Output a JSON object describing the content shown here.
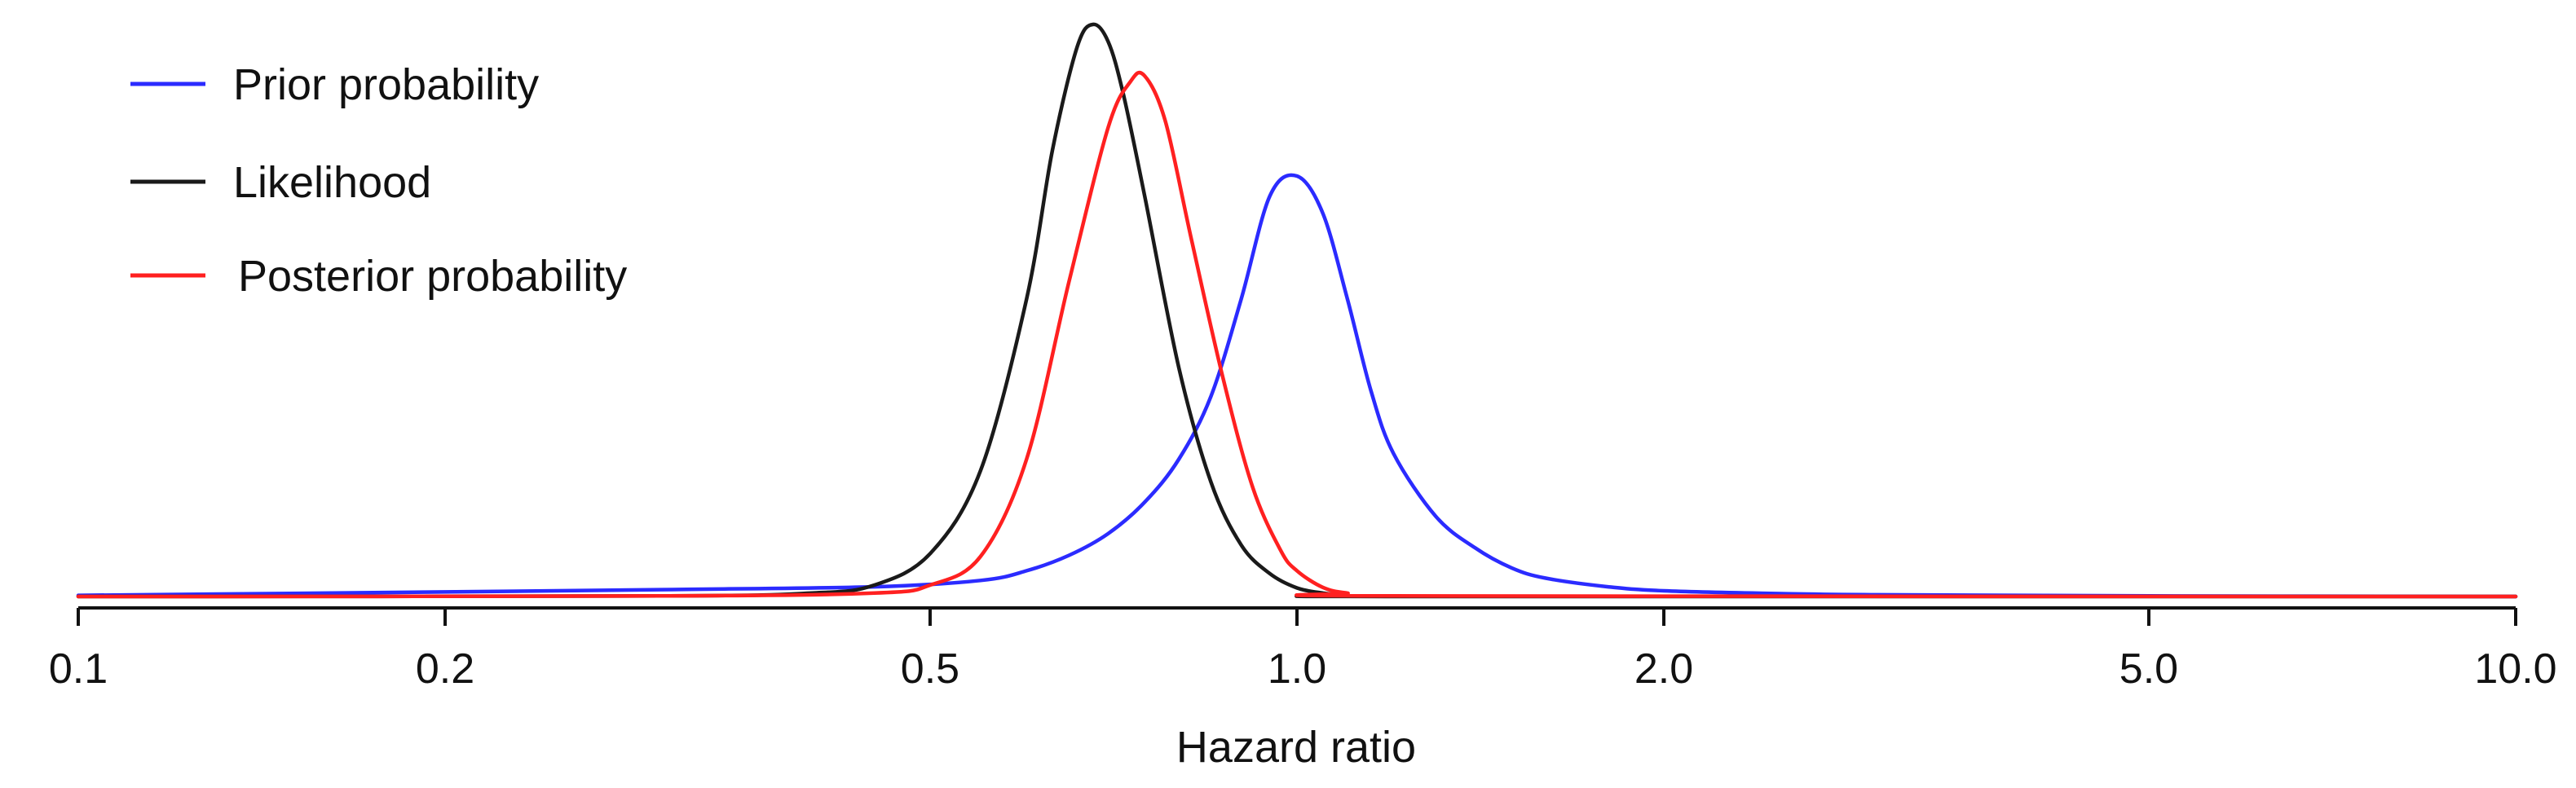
{
  "chart_data": {
    "type": "line",
    "xscale": "log",
    "xlim": [
      0.1,
      10.0
    ],
    "ylim": [
      0,
      1
    ],
    "xlabel": "Hazard ratio",
    "ylabel": "",
    "grid": false,
    "legend_position": "top-left",
    "xticks": [
      {
        "value": 0.1,
        "label": "0.1"
      },
      {
        "value": 0.2,
        "label": "0.2"
      },
      {
        "value": 0.5,
        "label": "0.5"
      },
      {
        "value": 1.0,
        "label": "1.0"
      },
      {
        "value": 2.0,
        "label": "2.0"
      },
      {
        "value": 5.0,
        "label": "5.0"
      },
      {
        "value": 10.0,
        "label": "10.0"
      }
    ],
    "series": [
      {
        "name": "Prior probability",
        "color": "#2b2bff",
        "x": [
          0.1,
          0.2,
          0.3,
          0.45,
          0.55,
          0.6,
          0.65,
          0.7,
          0.75,
          0.8,
          0.85,
          0.9,
          0.95,
          1.0,
          1.05,
          1.1,
          1.15,
          1.2,
          1.3,
          1.4,
          1.5,
          1.6,
          1.8,
          2.0,
          2.5,
          3.0,
          5.0,
          10.0
        ],
        "y": [
          0.002,
          0.008,
          0.012,
          0.017,
          0.028,
          0.045,
          0.072,
          0.11,
          0.165,
          0.24,
          0.35,
          0.52,
          0.7,
          0.735,
          0.67,
          0.52,
          0.36,
          0.25,
          0.14,
          0.085,
          0.05,
          0.032,
          0.017,
          0.01,
          0.005,
          0.003,
          0.001,
          0.0
        ]
      },
      {
        "name": "Likelihood",
        "color": "#1a1a1a",
        "x": [
          0.1,
          0.3,
          0.4,
          0.45,
          0.5,
          0.55,
          0.6,
          0.63,
          0.66,
          0.68,
          0.7,
          0.72,
          0.75,
          0.8,
          0.85,
          0.9,
          0.95,
          1.0,
          1.05,
          1.1,
          1.2,
          10.0
        ],
        "y": [
          0.0,
          0.001,
          0.006,
          0.02,
          0.075,
          0.22,
          0.52,
          0.78,
          0.96,
          1.0,
          0.97,
          0.88,
          0.7,
          0.4,
          0.2,
          0.09,
          0.04,
          0.015,
          0.006,
          0.002,
          0.0,
          0.0
        ]
      },
      {
        "name": "Posterior probability",
        "color": "#ff2020",
        "x": [
          0.1,
          0.3,
          0.45,
          0.5,
          0.55,
          0.6,
          0.65,
          0.7,
          0.73,
          0.75,
          0.78,
          0.82,
          0.87,
          0.92,
          0.97,
          1.0,
          1.05,
          1.1,
          1.2,
          10.0
        ],
        "y": [
          0.0,
          0.001,
          0.006,
          0.02,
          0.07,
          0.24,
          0.55,
          0.82,
          0.9,
          0.91,
          0.83,
          0.62,
          0.38,
          0.19,
          0.08,
          0.045,
          0.016,
          0.006,
          0.001,
          0.0
        ]
      }
    ]
  }
}
